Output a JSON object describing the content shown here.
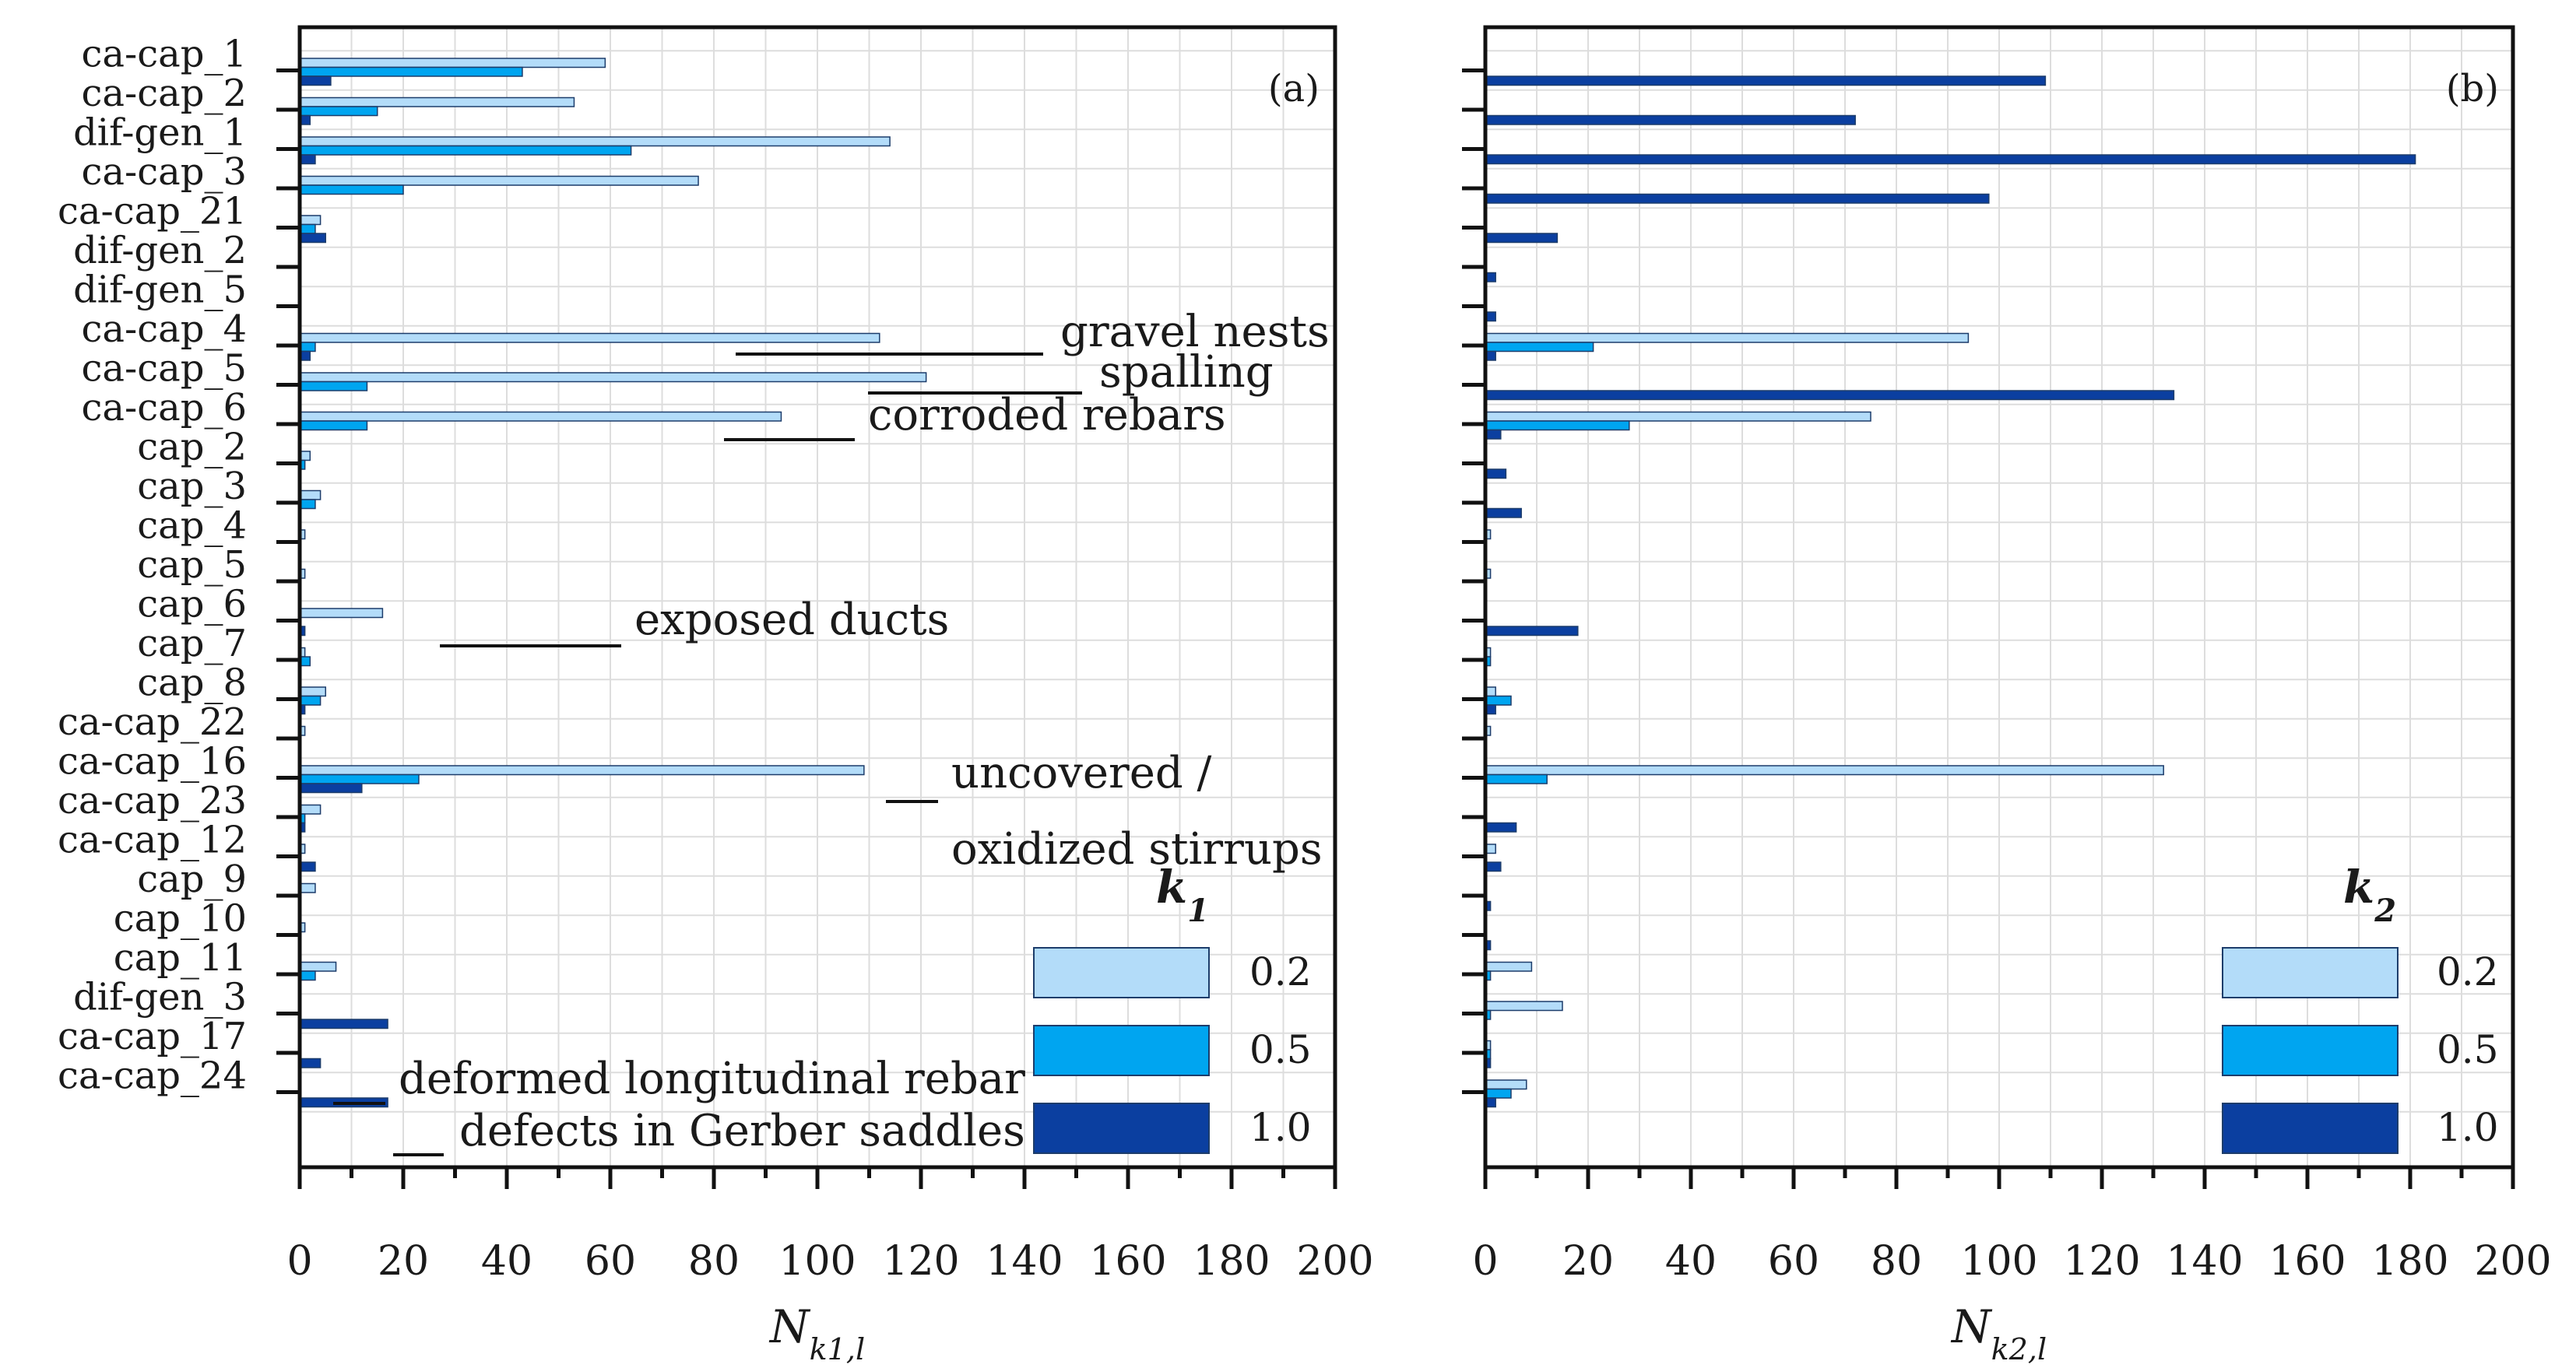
{
  "colors": {
    "k02": "#b3dcf9",
    "k05": "#00a5f0",
    "k10": "#0b3fa0"
  },
  "chart_data": [
    {
      "type": "bar",
      "orientation": "horizontal",
      "panel_label": "(a)",
      "xlabel_main": "N",
      "xlabel_sub": "k1,l",
      "xlim": [
        0,
        200
      ],
      "xticks": [
        "0",
        "20",
        "40",
        "60",
        "80",
        "100",
        "120",
        "140",
        "160",
        "180",
        "200"
      ],
      "grid": true,
      "categories": [
        "ca-cap_1",
        "ca-cap_2",
        "dif-gen_1",
        "ca-cap_3",
        "ca-cap_21",
        "dif-gen_2",
        "dif-gen_5",
        "ca-cap_4",
        "ca-cap_5",
        "ca-cap_6",
        "cap_2",
        "cap_3",
        "cap_4",
        "cap_5",
        "cap_6",
        "cap_7",
        "cap_8",
        "ca-cap_22",
        "ca-cap_16",
        "ca-cap_23",
        "ca-cap_12",
        "cap_9",
        "cap_10",
        "cap_11",
        "dif-gen_3",
        "ca-cap_17",
        "ca-cap_24"
      ],
      "series": [
        {
          "name": "0.2",
          "values": [
            59,
            53,
            114,
            77,
            4,
            0,
            0,
            112,
            121,
            93,
            2,
            4,
            1,
            1,
            16,
            1,
            5,
            1,
            109,
            4,
            1,
            3,
            1,
            7,
            0,
            0,
            0
          ]
        },
        {
          "name": "0.5",
          "values": [
            43,
            15,
            64,
            20,
            3,
            0,
            0,
            3,
            13,
            13,
            1,
            3,
            0,
            0,
            0,
            2,
            4,
            0,
            23,
            1,
            0,
            0,
            0,
            3,
            0,
            0,
            0
          ]
        },
        {
          "name": "1.0",
          "values": [
            6,
            2,
            3,
            0,
            5,
            0,
            0,
            2,
            0,
            0,
            0,
            0,
            0,
            0,
            1,
            0,
            1,
            0,
            12,
            1,
            3,
            0,
            0,
            0,
            17,
            4,
            17
          ]
        }
      ],
      "legend_title_main": "k",
      "legend_title_sub": "1",
      "legend_position": "bottom-right",
      "annotations": [
        {
          "text": "gravel nests",
          "category": "ca-cap_4"
        },
        {
          "text": "spalling",
          "category": "ca-cap_5"
        },
        {
          "text": "corroded rebars",
          "category": "ca-cap_6"
        },
        {
          "text": "exposed ducts",
          "category": "cap_6"
        },
        {
          "text": "uncovered /",
          "category": "ca-cap_16"
        },
        {
          "text": "oxidized stirrups",
          "category": "ca-cap_23"
        },
        {
          "text": "deformed longitudinal rebar",
          "category": "ca-cap_17"
        },
        {
          "text": "defects in Gerber saddles",
          "category": "ca-cap_24"
        }
      ]
    },
    {
      "type": "bar",
      "orientation": "horizontal",
      "panel_label": "(b)",
      "xlabel_main": "N",
      "xlabel_sub": "k2,l",
      "xlim": [
        0,
        200
      ],
      "xticks": [
        "0",
        "20",
        "40",
        "60",
        "80",
        "100",
        "120",
        "140",
        "160",
        "180",
        "200"
      ],
      "grid": true,
      "categories": [
        "ca-cap_1",
        "ca-cap_2",
        "dif-gen_1",
        "ca-cap_3",
        "ca-cap_21",
        "dif-gen_2",
        "dif-gen_5",
        "ca-cap_4",
        "ca-cap_5",
        "ca-cap_6",
        "cap_2",
        "cap_3",
        "cap_4",
        "cap_5",
        "cap_6",
        "cap_7",
        "cap_8",
        "ca-cap_22",
        "ca-cap_16",
        "ca-cap_23",
        "ca-cap_12",
        "cap_9",
        "cap_10",
        "cap_11",
        "dif-gen_3",
        "ca-cap_17",
        "ca-cap_24"
      ],
      "series": [
        {
          "name": "0.2",
          "values": [
            0,
            0,
            0,
            0,
            0,
            0,
            0,
            94,
            0,
            75,
            0,
            0,
            1,
            1,
            0,
            1,
            2,
            1,
            132,
            0,
            2,
            0,
            0,
            9,
            15,
            1,
            8
          ]
        },
        {
          "name": "0.5",
          "values": [
            0,
            0,
            0,
            0,
            0,
            0,
            0,
            21,
            0,
            28,
            0,
            0,
            0,
            0,
            0,
            1,
            5,
            0,
            12,
            0,
            0,
            0,
            0,
            1,
            1,
            1,
            5
          ]
        },
        {
          "name": "1.0",
          "values": [
            109,
            72,
            181,
            98,
            14,
            2,
            2,
            2,
            134,
            3,
            4,
            7,
            0,
            0,
            18,
            0,
            2,
            0,
            0,
            6,
            3,
            1,
            1,
            0,
            0,
            1,
            2
          ]
        }
      ],
      "legend_title_main": "k",
      "legend_title_sub": "2",
      "legend_position": "bottom-right"
    }
  ]
}
